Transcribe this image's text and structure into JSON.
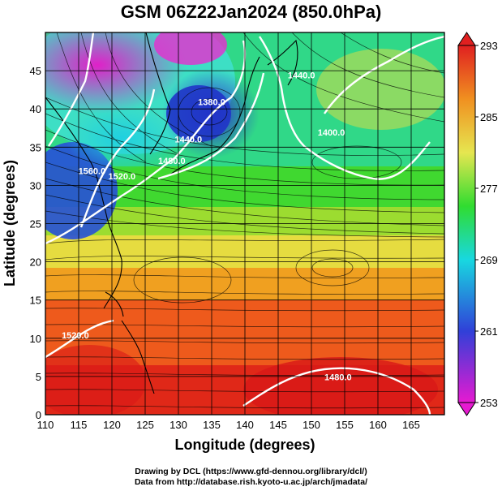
{
  "title": "GSM 06Z22Jan2024 (850.0hPa)",
  "map": {
    "xlabel": "Longitude (degrees)",
    "ylabel": "Latitude  (degrees)",
    "x_ticks": [
      "110",
      "115",
      "120",
      "125",
      "130",
      "135",
      "140",
      "145",
      "150",
      "155",
      "160",
      "165"
    ],
    "y_ticks": [
      "0",
      "5",
      "10",
      "15",
      "20",
      "25",
      "30",
      "35",
      "40",
      "45"
    ],
    "xlim": [
      110,
      170
    ],
    "ylim": [
      0,
      50
    ],
    "grid": true,
    "contour_labels": [
      {
        "text": "1440.0",
        "lon": 131.5,
        "lat": 35.6
      },
      {
        "text": "1480.0",
        "lon": 129.0,
        "lat": 32.8
      },
      {
        "text": "1520.0",
        "lon": 121.5,
        "lat": 30.8
      },
      {
        "text": "1560.0",
        "lon": 117.0,
        "lat": 31.5
      },
      {
        "text": "1400.0",
        "lon": 153.0,
        "lat": 36.5
      },
      {
        "text": "1440.0",
        "lon": 148.5,
        "lat": 44.0
      },
      {
        "text": "1480.0",
        "lon": 154.0,
        "lat": 4.5
      },
      {
        "text": "1520.0",
        "lon": 114.5,
        "lat": 10.0
      },
      {
        "text": "1380.0",
        "lon": 135.0,
        "lat": 40.5
      }
    ]
  },
  "colorbar": {
    "labels": [
      "293",
      "285",
      "277",
      "269",
      "261",
      "253"
    ],
    "min": 253,
    "max": 293,
    "colors": [
      "#e61ad1",
      "#3040d8",
      "#18d8e0",
      "#30dc30",
      "#e6e650",
      "#f09020",
      "#e02020"
    ]
  },
  "credits": {
    "line1": "Drawing by DCL (https://www.gfd-dennou.org/library/dcl/)",
    "line2": "Data from http://database.rish.kyoto-u.ac.jp/arch/jmadata/"
  }
}
